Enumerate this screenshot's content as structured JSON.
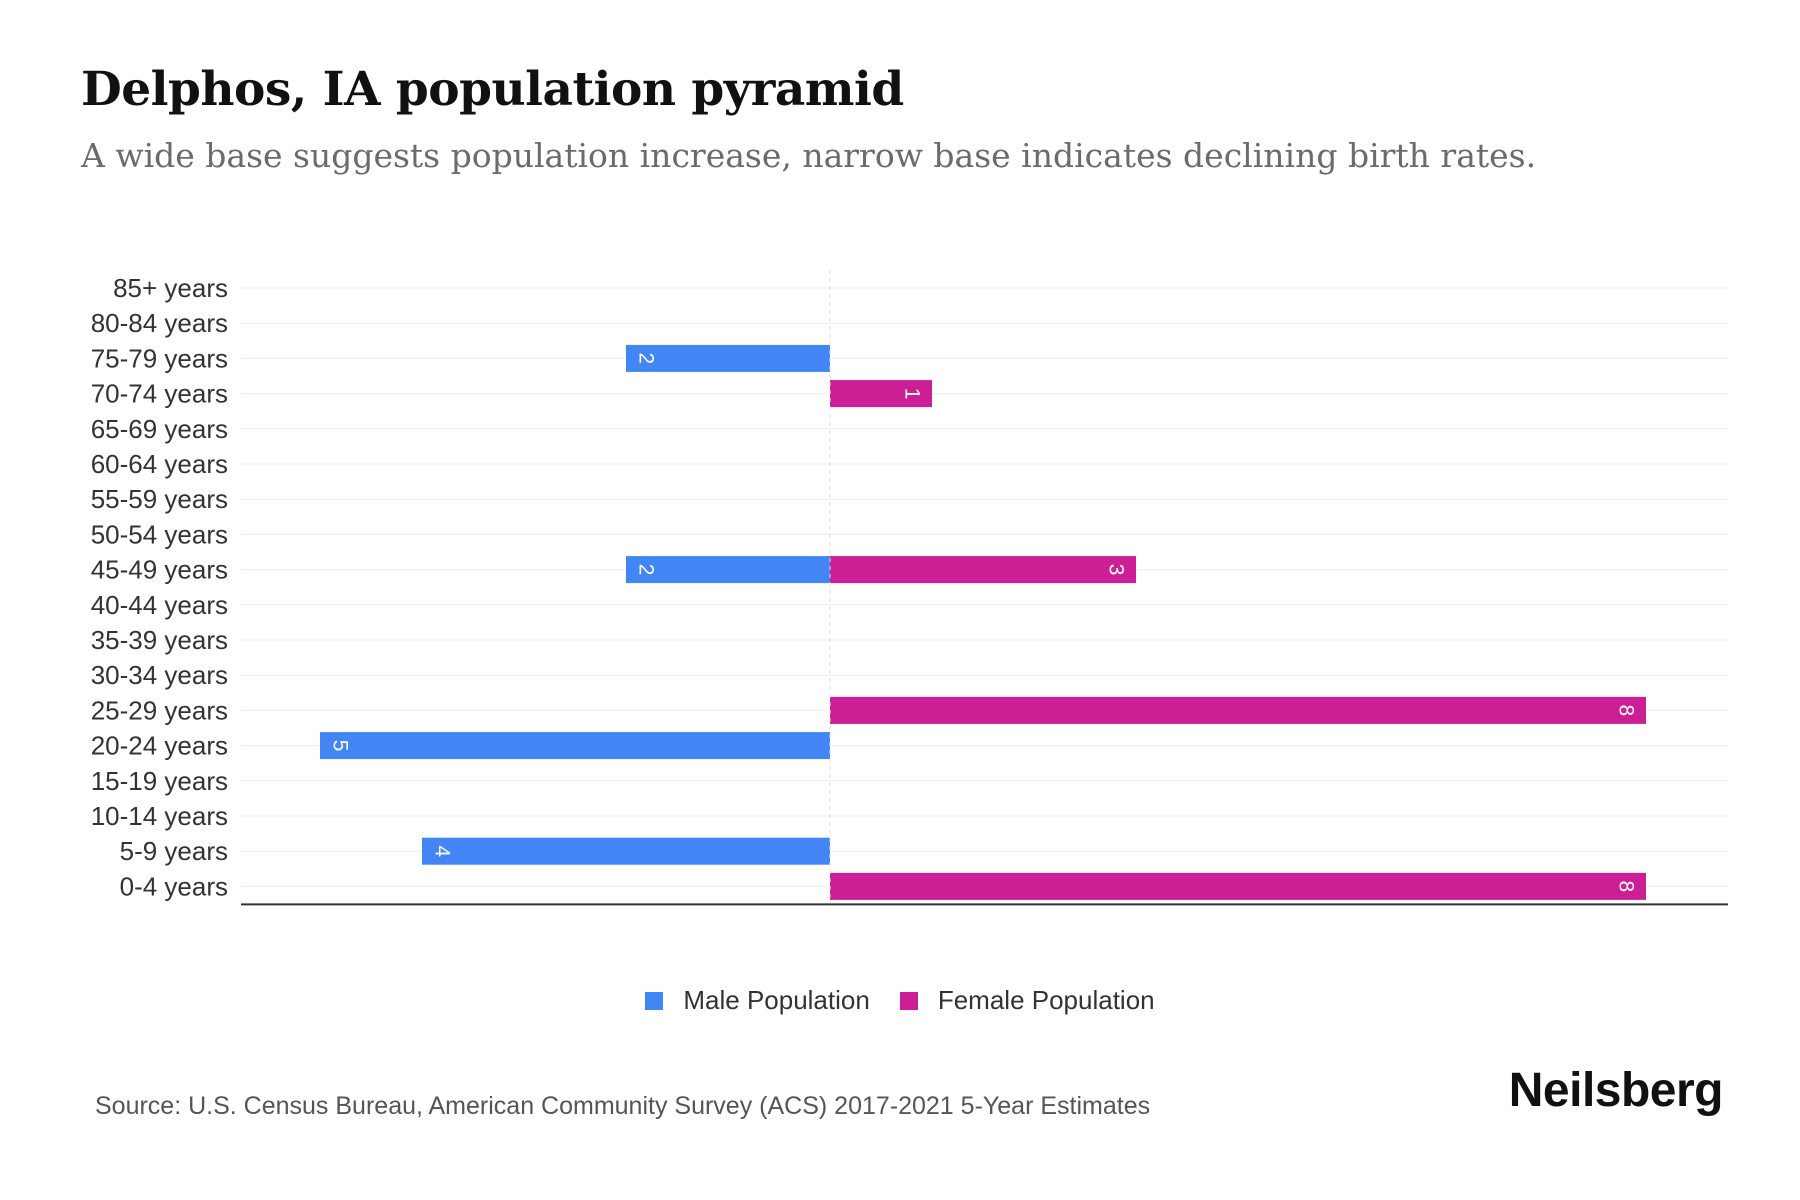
{
  "header": {
    "title": "Delphos, IA population pyramid",
    "subtitle": "A wide base suggests population increase, narrow base indicates declining birth rates."
  },
  "chart_data": {
    "type": "bar",
    "orientation": "horizontal-diverging",
    "categories": [
      "85+ years",
      "80-84 years",
      "75-79 years",
      "70-74 years",
      "65-69 years",
      "60-64 years",
      "55-59 years",
      "50-54 years",
      "45-49 years",
      "40-44 years",
      "35-39 years",
      "30-34 years",
      "25-29 years",
      "20-24 years",
      "15-19 years",
      "10-14 years",
      "5-9 years",
      "0-4 years"
    ],
    "series": [
      {
        "name": "Male Population",
        "color": "#4285f4",
        "values": [
          0,
          0,
          2,
          0,
          0,
          0,
          0,
          0,
          2,
          0,
          0,
          0,
          0,
          5,
          0,
          0,
          4,
          0
        ]
      },
      {
        "name": "Female Population",
        "color": "#cc1f95",
        "values": [
          0,
          0,
          0,
          1,
          0,
          0,
          0,
          0,
          3,
          0,
          0,
          0,
          8,
          0,
          0,
          0,
          0,
          8
        ]
      }
    ],
    "xlim": [
      -8,
      8
    ],
    "data_labels": true,
    "grid": true,
    "legend_position": "bottom-center"
  },
  "legend": {
    "items": [
      {
        "label": "Male Population",
        "color": "#4285f4"
      },
      {
        "label": "Female Population",
        "color": "#cc1f95"
      }
    ]
  },
  "footer": {
    "source": "Source: U.S. Census Bureau, American Community Survey (ACS) 2017-2021 5-Year Estimates",
    "brand": "Neilsberg"
  }
}
